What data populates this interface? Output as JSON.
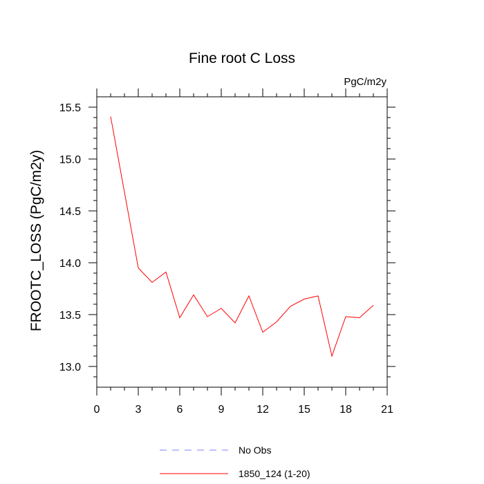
{
  "chart_data": {
    "type": "line",
    "title": "Fine root C Loss",
    "units_label": "PgC/m2y",
    "xlabel": "",
    "ylabel": "FROOTC_LOSS  (PgC/m2y)",
    "xlim": [
      0,
      21
    ],
    "ylim": [
      12.8,
      15.6
    ],
    "x_ticks": [
      0,
      3,
      6,
      9,
      12,
      15,
      18,
      21
    ],
    "y_ticks": [
      13.0,
      13.5,
      14.0,
      14.5,
      15.0,
      15.5
    ],
    "grid": false,
    "legend_position": "bottom",
    "x": [
      1,
      2,
      3,
      4,
      5,
      6,
      7,
      8,
      9,
      10,
      11,
      12,
      13,
      14,
      15,
      16,
      17,
      18,
      19,
      20
    ],
    "series": [
      {
        "name": "1850_124 (1-20)",
        "color": "#ff0000",
        "style": "solid",
        "values": [
          15.41,
          14.68,
          13.95,
          13.81,
          13.91,
          13.47,
          13.69,
          13.48,
          13.56,
          13.42,
          13.68,
          13.33,
          13.43,
          13.58,
          13.65,
          13.68,
          13.1,
          13.48,
          13.47,
          13.59
        ]
      }
    ],
    "legend": [
      {
        "label": "No Obs",
        "color": "#8080ff",
        "style": "dashed"
      },
      {
        "label": "1850_124 (1-20)",
        "color": "#ff0000",
        "style": "solid"
      }
    ]
  }
}
